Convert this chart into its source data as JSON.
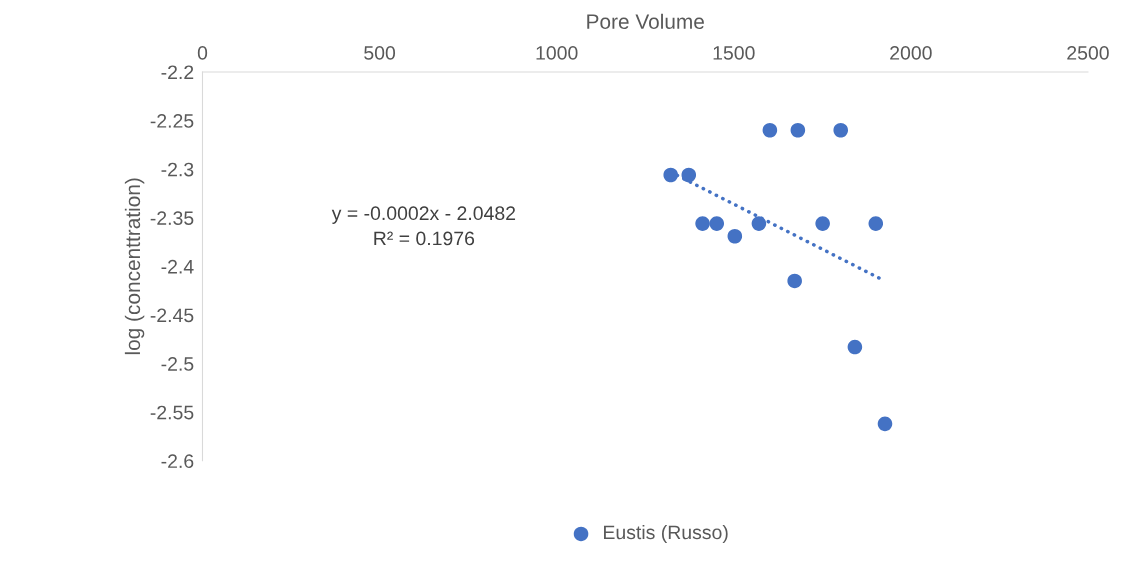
{
  "chart_data": {
    "type": "scatter",
    "xlabel": "Pore Volume",
    "ylabel": "log (concenttration)",
    "xlim": [
      0,
      2500
    ],
    "xticks": [
      0,
      500,
      1000,
      1500,
      2000,
      2500
    ],
    "ylim": [
      -2.6,
      -2.2
    ],
    "yticks": [
      -2.6,
      -2.55,
      -2.5,
      -2.45,
      -2.4,
      -2.35,
      -2.3,
      -2.25,
      -2.2
    ],
    "marker": "circle",
    "legend": "bottom",
    "grid": false,
    "series": [
      {
        "name": "Eustis (Russo)",
        "color": "#4472c4",
        "x": [
          1322,
          1373,
          1412,
          1452,
          1503,
          1571,
          1602,
          1681,
          1802,
          1751,
          1901,
          1672,
          1842,
          1927
        ],
        "values": [
          -2.306,
          -2.306,
          -2.356,
          -2.356,
          -2.369,
          -2.356,
          -2.26,
          -2.26,
          -2.26,
          -2.356,
          -2.356,
          -2.415,
          -2.483,
          -2.562
        ]
      },
      {
        "type": "line",
        "color": "#4472c4",
        "line_style": "dotted",
        "marker": "none",
        "x": [
          1322,
          1921
        ],
        "values": [
          -2.303,
          -2.414
        ]
      }
    ],
    "annotations": [
      "y = -0.0002x - 2.0482\nR² = 0.1976"
    ]
  }
}
